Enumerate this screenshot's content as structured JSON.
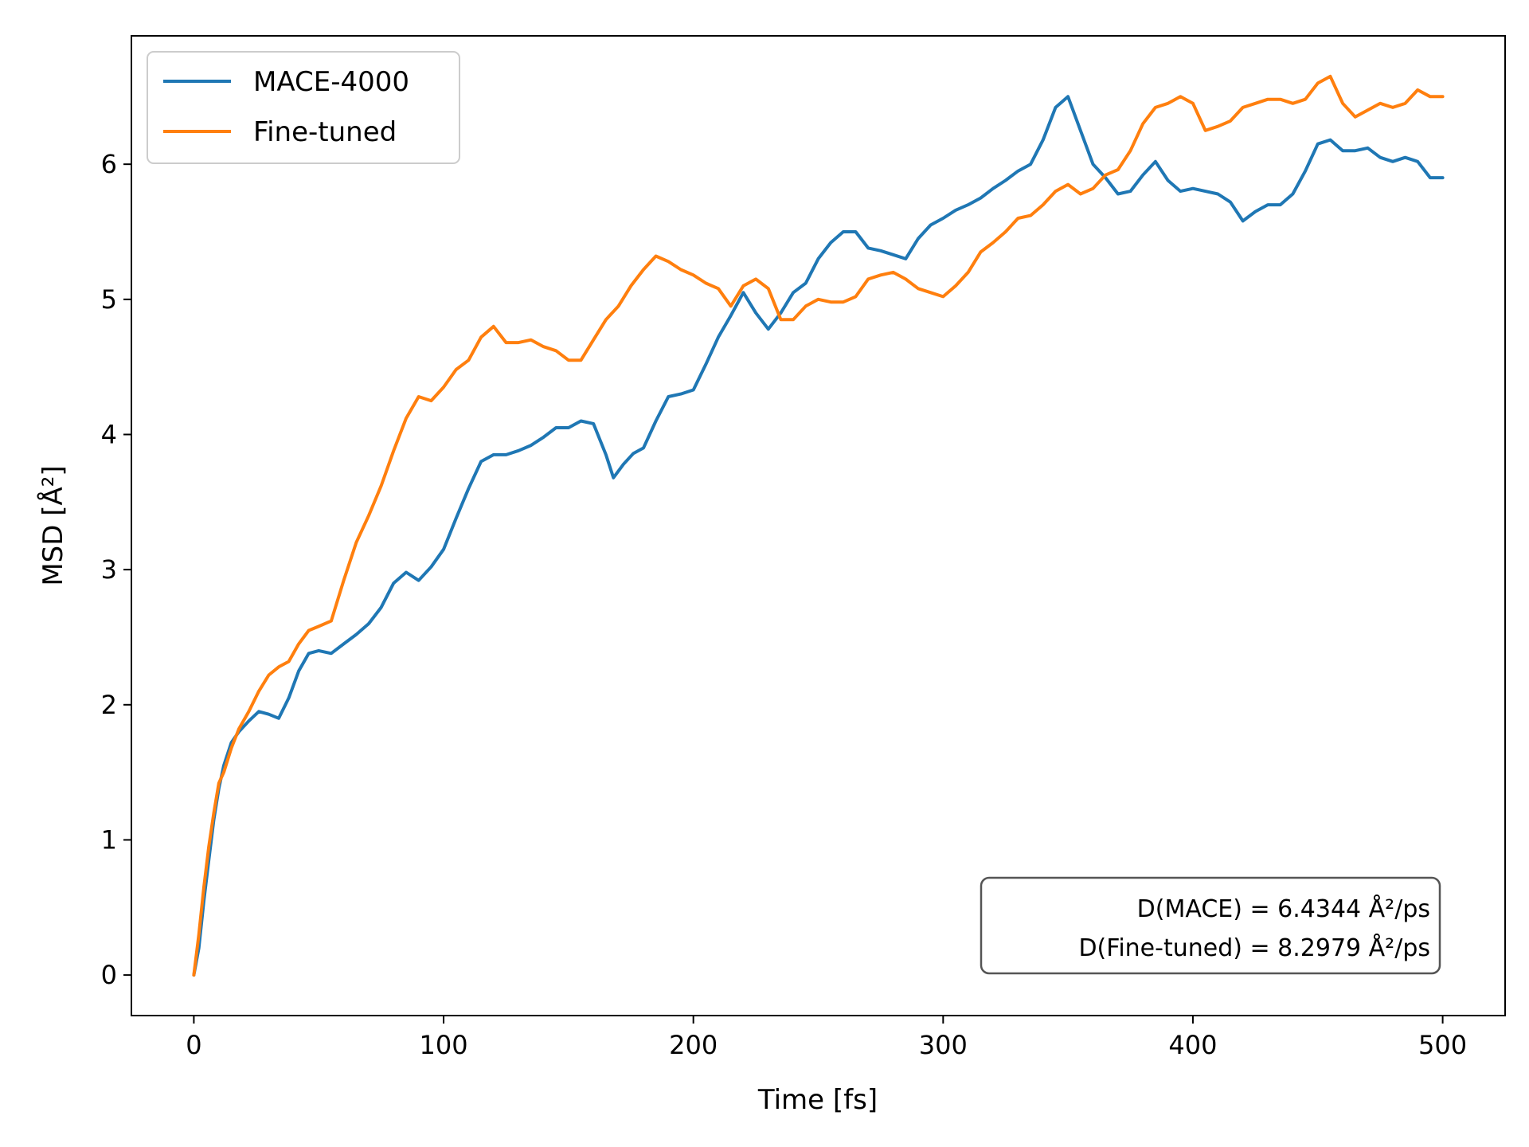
{
  "chart_data": {
    "type": "line",
    "xlabel": "Time [fs]",
    "ylabel": "MSD [Å²]",
    "xlim": [
      -25,
      525
    ],
    "ylim": [
      -0.3,
      6.95
    ],
    "xticks": [
      0,
      100,
      200,
      300,
      400,
      500
    ],
    "yticks": [
      0,
      1,
      2,
      3,
      4,
      5,
      6
    ],
    "grid": false,
    "legend_position": "upper-left",
    "series": [
      {
        "name": "MACE-4000",
        "color": "#1f77b4",
        "x": [
          0,
          2,
          4,
          6,
          8,
          10,
          12,
          15,
          18,
          22,
          26,
          30,
          34,
          38,
          42,
          46,
          50,
          55,
          60,
          65,
          70,
          75,
          80,
          85,
          90,
          95,
          100,
          105,
          110,
          115,
          120,
          125,
          130,
          135,
          140,
          145,
          150,
          155,
          160,
          165,
          168,
          172,
          176,
          180,
          185,
          190,
          195,
          200,
          205,
          210,
          215,
          220,
          225,
          230,
          235,
          240,
          245,
          250,
          255,
          260,
          265,
          270,
          275,
          280,
          285,
          290,
          295,
          300,
          305,
          310,
          315,
          320,
          325,
          330,
          335,
          340,
          345,
          350,
          355,
          360,
          365,
          370,
          375,
          380,
          385,
          390,
          395,
          400,
          405,
          410,
          415,
          420,
          425,
          430,
          435,
          440,
          445,
          450,
          455,
          460,
          465,
          470,
          475,
          480,
          485,
          490,
          495,
          500
        ],
        "y": [
          0,
          0.2,
          0.55,
          0.85,
          1.15,
          1.38,
          1.55,
          1.72,
          1.8,
          1.88,
          1.95,
          1.93,
          1.9,
          2.05,
          2.25,
          2.38,
          2.4,
          2.38,
          2.45,
          2.52,
          2.6,
          2.72,
          2.9,
          2.98,
          2.92,
          3.02,
          3.15,
          3.38,
          3.6,
          3.8,
          3.85,
          3.85,
          3.88,
          3.92,
          3.98,
          4.05,
          4.05,
          4.1,
          4.08,
          3.85,
          3.68,
          3.78,
          3.86,
          3.9,
          4.1,
          4.28,
          4.3,
          4.33,
          4.52,
          4.72,
          4.88,
          5.05,
          4.9,
          4.78,
          4.9,
          5.05,
          5.12,
          5.3,
          5.42,
          5.5,
          5.5,
          5.38,
          5.36,
          5.33,
          5.3,
          5.45,
          5.55,
          5.6,
          5.66,
          5.7,
          5.75,
          5.82,
          5.88,
          5.95,
          6.0,
          6.18,
          6.42,
          6.5,
          6.25,
          6.0,
          5.9,
          5.78,
          5.8,
          5.92,
          6.02,
          5.88,
          5.8,
          5.82,
          5.8,
          5.78,
          5.72,
          5.58,
          5.65,
          5.7,
          5.7,
          5.78,
          5.95,
          6.15,
          6.18,
          6.1,
          6.1,
          6.12,
          6.05,
          6.02,
          6.05,
          6.02,
          5.9,
          5.9
        ]
      },
      {
        "name": "Fine-tuned",
        "color": "#ff7f0e",
        "x": [
          0,
          2,
          4,
          6,
          8,
          10,
          12,
          15,
          18,
          22,
          26,
          30,
          34,
          38,
          42,
          46,
          50,
          55,
          60,
          65,
          70,
          75,
          80,
          85,
          90,
          95,
          100,
          105,
          110,
          115,
          120,
          125,
          130,
          135,
          140,
          145,
          150,
          155,
          160,
          165,
          170,
          175,
          180,
          185,
          190,
          195,
          200,
          205,
          210,
          215,
          220,
          225,
          230,
          235,
          240,
          245,
          250,
          255,
          260,
          265,
          270,
          275,
          280,
          285,
          290,
          295,
          300,
          305,
          310,
          315,
          320,
          325,
          330,
          335,
          340,
          345,
          350,
          355,
          360,
          365,
          370,
          375,
          380,
          385,
          390,
          395,
          400,
          405,
          410,
          415,
          420,
          425,
          430,
          435,
          440,
          445,
          450,
          455,
          460,
          465,
          470,
          475,
          480,
          485,
          490,
          495,
          500
        ],
        "y": [
          0,
          0.3,
          0.65,
          0.95,
          1.2,
          1.42,
          1.5,
          1.68,
          1.82,
          1.95,
          2.1,
          2.22,
          2.28,
          2.32,
          2.45,
          2.55,
          2.58,
          2.62,
          2.92,
          3.2,
          3.4,
          3.62,
          3.88,
          4.12,
          4.28,
          4.25,
          4.35,
          4.48,
          4.55,
          4.72,
          4.8,
          4.68,
          4.68,
          4.7,
          4.65,
          4.62,
          4.55,
          4.55,
          4.7,
          4.85,
          4.95,
          5.1,
          5.22,
          5.32,
          5.28,
          5.22,
          5.18,
          5.12,
          5.08,
          4.95,
          5.1,
          5.15,
          5.08,
          4.85,
          4.85,
          4.95,
          5.0,
          4.98,
          4.98,
          5.02,
          5.15,
          5.18,
          5.2,
          5.15,
          5.08,
          5.05,
          5.02,
          5.1,
          5.2,
          5.35,
          5.42,
          5.5,
          5.6,
          5.62,
          5.7,
          5.8,
          5.85,
          5.78,
          5.82,
          5.92,
          5.96,
          6.1,
          6.3,
          6.42,
          6.45,
          6.5,
          6.45,
          6.25,
          6.28,
          6.32,
          6.42,
          6.45,
          6.48,
          6.48,
          6.45,
          6.48,
          6.6,
          6.65,
          6.45,
          6.35,
          6.4,
          6.45,
          6.42,
          6.45,
          6.55,
          6.5,
          6.5
        ]
      }
    ],
    "annotation": {
      "lines": [
        "D(MACE) = 6.4344 Å²/ps",
        "D(Fine-tuned) = 8.2979 Å²/ps"
      ]
    }
  }
}
